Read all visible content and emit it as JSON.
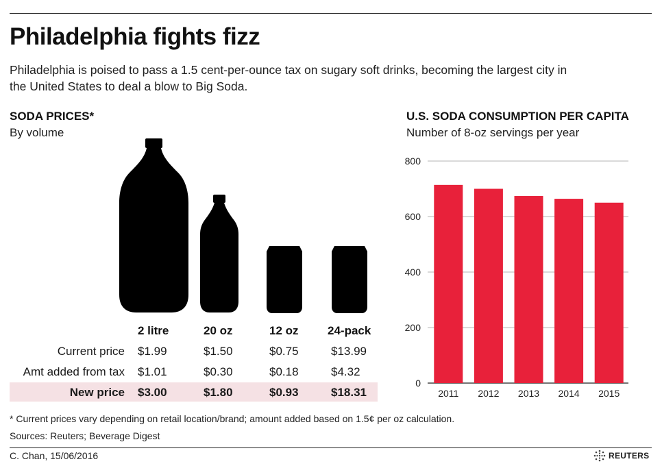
{
  "title": "Philadelphia fights fizz",
  "subtitle": "Philadelphia is poised to pass a 1.5 cent-per-ounce tax on sugary soft drinks, becoming the largest city in the United States to deal a blow to Big Soda.",
  "prices": {
    "title": "SODA PRICES*",
    "subtitle": "By volume",
    "columns": [
      "2 litre",
      "20 oz",
      "12 oz",
      "24-pack"
    ],
    "rows": [
      {
        "label": "Current price",
        "values": [
          "$1.99",
          "$1.50",
          "$0.75",
          "$13.99"
        ]
      },
      {
        "label": "Amt added from tax",
        "values": [
          "$1.01",
          "$0.30",
          "$0.18",
          "$4.32"
        ]
      },
      {
        "label": "New price",
        "values": [
          "$3.00",
          "$1.80",
          "$0.93",
          "$18.31"
        ]
      }
    ],
    "icons": [
      "two-litre-bottle-icon",
      "twenty-oz-bottle-icon",
      "can-icon",
      "can-icon"
    ]
  },
  "consumption": {
    "title": "U.S. SODA CONSUMPTION PER CAPITA",
    "subtitle": "Number of 8-oz servings per year"
  },
  "chart_data": {
    "type": "bar",
    "title": "U.S. SODA CONSUMPTION PER CAPITA",
    "subtitle": "Number of 8-oz servings per year",
    "categories": [
      "2011",
      "2012",
      "2013",
      "2014",
      "2015"
    ],
    "values": [
      714,
      700,
      674,
      664,
      650
    ],
    "ylim": [
      0,
      800
    ],
    "yticks": [
      0,
      200,
      400,
      600,
      800
    ],
    "grid": true,
    "bar_color": "#e8213a"
  },
  "colors": {
    "accent": "#e8213a",
    "highlight": "#f5e1e4",
    "ink": "#111111"
  },
  "footnote": "* Current prices vary depending on retail location/brand; amount added based on 1.5¢ per oz calculation.",
  "sources": "Sources: Reuters; Beverage Digest",
  "credit": "C. Chan, 15/06/2016",
  "logo": "REUTERS"
}
